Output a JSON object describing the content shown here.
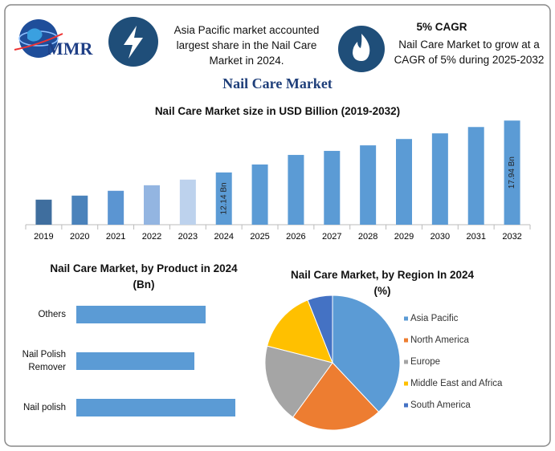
{
  "header": {
    "logo": "MMR",
    "note_1": "Asia Pacific market accounted largest share in the Nail Care Market in 2024.",
    "cagr_title": "5% CAGR",
    "note_2": "Nail Care Market to grow at a CAGR of 5% during 2025-2032",
    "title": "Nail Care Market"
  },
  "chart_data": [
    {
      "type": "bar",
      "title": "Nail Care Market size in USD Billion (2019-2032)",
      "categories": [
        "2019",
        "2020",
        "2021",
        "2022",
        "2023",
        "2024",
        "2025",
        "2026",
        "2027",
        "2028",
        "2029",
        "2030",
        "2031",
        "2032"
      ],
      "values": [
        9.1,
        9.55,
        10.09,
        10.71,
        11.34,
        12.14,
        13.03,
        14.1,
        14.55,
        15.17,
        15.88,
        16.51,
        17.22,
        17.94
      ],
      "value_labels": [
        null,
        null,
        null,
        null,
        null,
        "12.14 Bn",
        null,
        null,
        null,
        null,
        null,
        null,
        null,
        "17.94 Bn"
      ],
      "colors": [
        "#3f6e9e",
        "#4a82bb",
        "#5b95d2",
        "#93b5e1",
        "#bdd2ed",
        "#5b9bd5",
        "#5b9bd5",
        "#5b9bd5",
        "#5b9bd5",
        "#5b9bd5",
        "#5b9bd5",
        "#5b9bd5",
        "#5b9bd5",
        "#5b9bd5"
      ],
      "ylim": [
        6.3,
        18.5
      ]
    },
    {
      "type": "hbar",
      "title": "Nail Care Market, by Product in 2024 (Bn)",
      "categories": [
        "Others",
        "Nail Polish Remover",
        "Nail polish"
      ],
      "values": [
        1.61,
        1.47,
        1.98
      ],
      "color": "#5b9bd5",
      "xlim": [
        0,
        2.5
      ]
    },
    {
      "type": "pie",
      "title": "Nail Care Market, by Region In 2024 (%)",
      "categories": [
        "Asia Pacific",
        "North America",
        "Europe",
        "Middle East and Africa",
        "South America"
      ],
      "values": [
        38,
        22,
        19,
        15,
        6
      ],
      "colors": [
        "#5b9bd5",
        "#ed7d31",
        "#a5a5a5",
        "#ffc000",
        "#4472c4"
      ],
      "legend": "right"
    }
  ]
}
